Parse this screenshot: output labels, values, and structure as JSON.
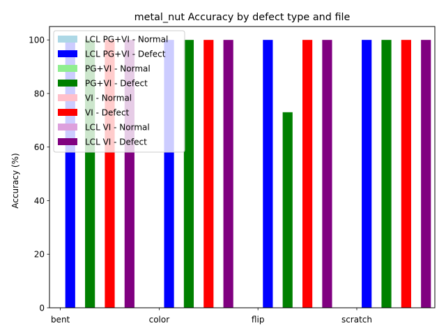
{
  "chart_data": {
    "type": "bar",
    "title": "metal_nut Accuracy by defect type and file",
    "xlabel": "",
    "ylabel": "Accuracy (%)",
    "categories": [
      "bent",
      "color",
      "flip",
      "scratch"
    ],
    "ylim": [
      0,
      105
    ],
    "yticks": [
      0,
      20,
      40,
      60,
      80,
      100
    ],
    "legend_position": "upper-left",
    "series": [
      {
        "name": "LCL PG+VI - Normal",
        "color": "#add8e6",
        "values": [
          0,
          0,
          0,
          0
        ]
      },
      {
        "name": "LCL PG+VI - Defect",
        "color": "#0000ff",
        "values": [
          100,
          100,
          100,
          100
        ]
      },
      {
        "name": "PG+VI - Normal",
        "color": "#90ee90",
        "values": [
          0,
          0,
          0,
          0
        ]
      },
      {
        "name": "PG+VI - Defect",
        "color": "#008000",
        "values": [
          100,
          100,
          73,
          100
        ]
      },
      {
        "name": "VI - Normal",
        "color": "#ffc0cb",
        "values": [
          0,
          0,
          0,
          0
        ]
      },
      {
        "name": "VI - Defect",
        "color": "#ff0000",
        "values": [
          100,
          100,
          100,
          100
        ]
      },
      {
        "name": "LCL VI - Normal",
        "color": "#dda0dd",
        "values": [
          0,
          0,
          0,
          0
        ]
      },
      {
        "name": "LCL VI - Defect",
        "color": "#800080",
        "values": [
          100,
          100,
          100,
          100
        ]
      }
    ]
  }
}
